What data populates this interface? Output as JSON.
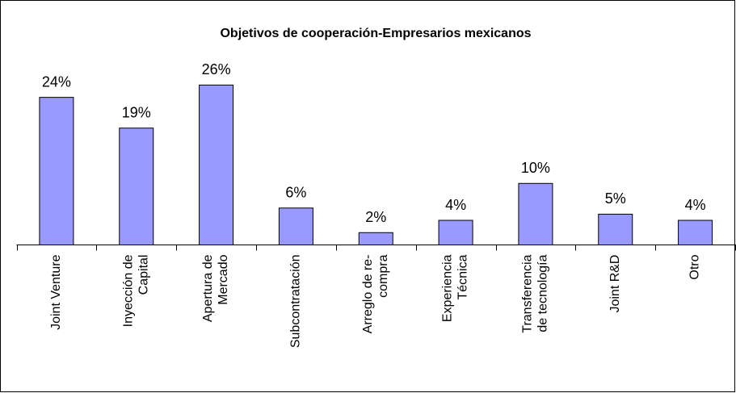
{
  "chart_data": {
    "type": "bar",
    "title": "Objetivos de cooperación-Empresarios mexicanos",
    "categories": [
      "Joint Venture",
      "Inyección de\nCapital",
      "Apertura de\nMercado",
      "Subcontratación",
      "Arreglo de re-\ncompra",
      "Experiencia\nTécnica",
      "Transferencia\nde tecnología",
      "Joint R&D",
      "Otro"
    ],
    "values": [
      24,
      19,
      26,
      6,
      2,
      4,
      10,
      5,
      4
    ],
    "value_labels": [
      "24%",
      "19%",
      "26%",
      "6%",
      "2%",
      "4%",
      "10%",
      "5%",
      "4%"
    ],
    "color": "#9999ff"
  }
}
